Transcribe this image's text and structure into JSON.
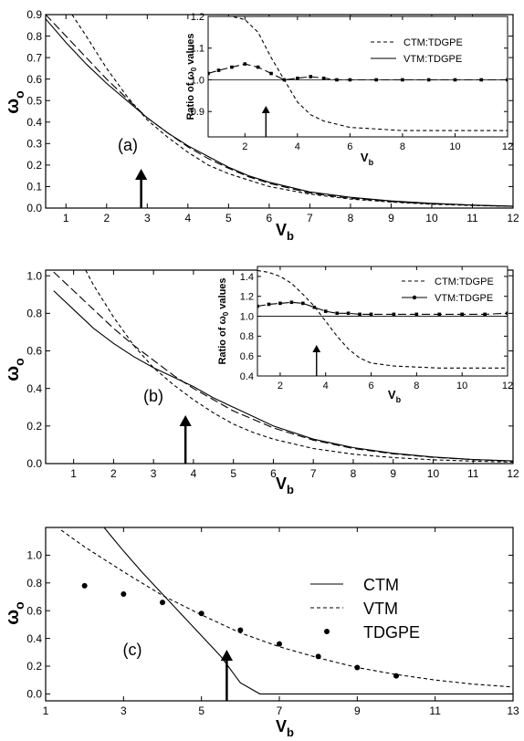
{
  "panels": [
    {
      "id": "a",
      "label": "(a)",
      "xlabel": "V",
      "xlabel_sub": "b",
      "ylabel": "ω",
      "ylabel_sub": "o",
      "xlim": [
        0.5,
        12
      ],
      "ylim": [
        0,
        0.9
      ],
      "xticks": [
        1,
        2,
        3,
        4,
        5,
        6,
        7,
        8,
        9,
        10,
        11,
        12
      ],
      "xtick_labels": [
        "1",
        "2",
        "3",
        "4",
        "5",
        "6",
        "7",
        "8",
        "9",
        "10",
        "11",
        "12"
      ],
      "yticks": [
        0,
        0.1,
        0.2,
        0.3,
        0.4,
        0.5,
        0.6,
        0.7,
        0.8,
        0.9
      ],
      "ytick_labels": [
        "0.0",
        "0.1",
        "0.2",
        "0.3",
        "0.4",
        "0.5",
        "0.6",
        "0.7",
        "0.8",
        "0.9"
      ],
      "arrow_x": 2.85,
      "series": [
        {
          "style": "solid",
          "x": [
            0.5,
            1,
            1.5,
            2,
            2.5,
            3,
            3.5,
            4,
            4.5,
            5,
            5.5,
            6,
            7,
            8,
            9,
            10,
            11,
            12
          ],
          "y": [
            0.88,
            0.77,
            0.67,
            0.58,
            0.5,
            0.42,
            0.35,
            0.29,
            0.24,
            0.19,
            0.15,
            0.12,
            0.075,
            0.05,
            0.033,
            0.022,
            0.014,
            0.009
          ]
        },
        {
          "style": "dashed",
          "x": [
            0.5,
            1,
            1.5,
            2,
            2.5,
            3,
            3.5,
            4,
            4.5,
            5,
            5.5,
            6,
            7,
            8,
            9,
            10,
            11,
            12
          ],
          "y": [
            0.9,
            0.8,
            0.7,
            0.6,
            0.51,
            0.42,
            0.35,
            0.285,
            0.23,
            0.185,
            0.145,
            0.115,
            0.07,
            0.045,
            0.03,
            0.02,
            0.013,
            0.008
          ]
        },
        {
          "style": "shortdash",
          "x": [
            1.15,
            1.5,
            2,
            2.5,
            3,
            3.5,
            4,
            4.5,
            5,
            5.5,
            6,
            7,
            8,
            9,
            10,
            11,
            12
          ],
          "y": [
            0.9,
            0.8,
            0.65,
            0.52,
            0.41,
            0.33,
            0.26,
            0.2,
            0.16,
            0.13,
            0.1,
            0.065,
            0.042,
            0.028,
            0.018,
            0.012,
            0.008
          ]
        }
      ],
      "inset": {
        "ylabel": "Ratio of ω",
        "ylabel_sub": "0",
        "ylabel_tail": " values",
        "xlabel": "V",
        "xlabel_sub": "b",
        "xlim": [
          0.6,
          12
        ],
        "ylim": [
          0.82,
          1.2
        ],
        "xticks": [
          2,
          4,
          6,
          8,
          10,
          12
        ],
        "xtick_labels": [
          "2",
          "4",
          "6",
          "8",
          "10",
          "12"
        ],
        "yticks": [
          0.9,
          1.0,
          1.1,
          1.2
        ],
        "ytick_labels": [
          "0.9",
          "1.0",
          "1.1",
          "1.2"
        ],
        "ref_y": 1.0,
        "arrow_x": 2.8,
        "legend": [
          {
            "style": "shortdash",
            "label": "CTM:TDGPE"
          },
          {
            "style": "solid",
            "label": "VTM:TDGPE"
          }
        ],
        "series": [
          {
            "style": "shortdash",
            "x": [
              0.6,
              1,
              1.5,
              2,
              2.5,
              3,
              3.5,
              4,
              4.5,
              5,
              5.5,
              6,
              7,
              8,
              9,
              10,
              11,
              12
            ],
            "y": [
              1.2,
              1.2,
              1.2,
              1.19,
              1.15,
              1.07,
              1.0,
              0.93,
              0.89,
              0.87,
              0.86,
              0.85,
              0.845,
              0.84,
              0.84,
              0.84,
              0.84,
              0.84
            ]
          },
          {
            "style": "dashed",
            "markers": true,
            "x": [
              0.6,
              1,
              1.5,
              2,
              2.5,
              3,
              3.5,
              4,
              4.5,
              5,
              5.5,
              6,
              7,
              8,
              9,
              10,
              11,
              12
            ],
            "y": [
              1.02,
              1.03,
              1.04,
              1.05,
              1.04,
              1.02,
              1.0,
              1.005,
              1.01,
              1.005,
              1.0,
              1.0,
              1.0,
              1.0,
              1.0,
              1.0,
              1.0,
              1.0
            ]
          }
        ]
      }
    },
    {
      "id": "b",
      "label": "(b)",
      "xlabel": "V",
      "xlabel_sub": "b",
      "ylabel": "ω",
      "ylabel_sub": "o",
      "xlim": [
        0.3,
        12
      ],
      "ylim": [
        0,
        1.03
      ],
      "xticks": [
        1,
        2,
        3,
        4,
        5,
        6,
        7,
        8,
        9,
        10,
        11,
        12
      ],
      "xtick_labels": [
        "1",
        "2",
        "3",
        "4",
        "5",
        "6",
        "7",
        "8",
        "9",
        "10",
        "11",
        "12"
      ],
      "yticks": [
        0,
        0.2,
        0.4,
        0.6,
        0.8,
        1.0
      ],
      "ytick_labels": [
        "0.0",
        "0.2",
        "0.4",
        "0.6",
        "0.8",
        "1.0"
      ],
      "arrow_x": 3.8,
      "series": [
        {
          "style": "solid",
          "x": [
            0.5,
            1,
            1.5,
            2,
            2.5,
            3,
            3.5,
            4,
            4.5,
            5,
            5.5,
            6,
            7,
            8,
            9,
            10,
            11,
            12
          ],
          "y": [
            0.92,
            0.82,
            0.72,
            0.64,
            0.57,
            0.51,
            0.46,
            0.41,
            0.35,
            0.3,
            0.25,
            0.2,
            0.13,
            0.085,
            0.055,
            0.035,
            0.022,
            0.014
          ]
        },
        {
          "style": "dashed",
          "x": [
            0.5,
            1,
            1.5,
            2,
            2.5,
            3,
            3.5,
            4,
            4.5,
            5,
            5.5,
            6,
            7,
            8,
            9,
            10,
            11,
            12
          ],
          "y": [
            1.02,
            0.92,
            0.82,
            0.72,
            0.63,
            0.55,
            0.47,
            0.4,
            0.34,
            0.28,
            0.235,
            0.19,
            0.125,
            0.08,
            0.052,
            0.033,
            0.021,
            0.013
          ]
        },
        {
          "style": "shortdash",
          "x": [
            1.3,
            1.5,
            2,
            2.5,
            3,
            3.5,
            4,
            4.5,
            5,
            5.5,
            6,
            7,
            8,
            9,
            10,
            11,
            12
          ],
          "y": [
            1.03,
            0.95,
            0.78,
            0.63,
            0.51,
            0.42,
            0.34,
            0.27,
            0.21,
            0.165,
            0.13,
            0.08,
            0.05,
            0.032,
            0.02,
            0.013,
            0.008
          ]
        }
      ],
      "inset": {
        "ylabel": "Ratio of ω",
        "ylabel_sub": "0",
        "ylabel_tail": " values",
        "xlabel": "V",
        "xlabel_sub": "b",
        "xlim": [
          1,
          12
        ],
        "ylim": [
          0.4,
          1.5
        ],
        "xticks": [
          2,
          4,
          6,
          8,
          10,
          12
        ],
        "xtick_labels": [
          "2",
          "4",
          "6",
          "8",
          "10",
          "12"
        ],
        "yticks": [
          0.4,
          0.6,
          0.8,
          1.0,
          1.2,
          1.4
        ],
        "ytick_labels": [
          "0.4",
          "0.6",
          "0.8",
          "1.0",
          "1.2",
          "1.4"
        ],
        "ref_y": 1.0,
        "arrow_x": 3.6,
        "legend": [
          {
            "style": "shortdash",
            "label": "CTM:TDGPE"
          },
          {
            "style": "solid",
            "markers": true,
            "label": "VTM:TDGPE"
          }
        ],
        "series": [
          {
            "style": "shortdash",
            "x": [
              1,
              1.5,
              2,
              2.5,
              3,
              3.5,
              4,
              4.5,
              5,
              5.5,
              6,
              7,
              8,
              9,
              10,
              11,
              12
            ],
            "y": [
              1.46,
              1.44,
              1.4,
              1.33,
              1.22,
              1.1,
              0.95,
              0.8,
              0.67,
              0.58,
              0.53,
              0.5,
              0.49,
              0.48,
              0.48,
              0.48,
              0.48
            ]
          },
          {
            "style": "dashed",
            "markers": true,
            "x": [
              1,
              1.5,
              2,
              2.5,
              3,
              3.5,
              4,
              4.5,
              5,
              5.5,
              6,
              7,
              8,
              9,
              10,
              11,
              12
            ],
            "y": [
              1.1,
              1.12,
              1.13,
              1.14,
              1.13,
              1.09,
              1.05,
              1.03,
              1.03,
              1.02,
              1.02,
              1.02,
              1.02,
              1.02,
              1.02,
              1.02,
              1.03
            ]
          }
        ]
      }
    },
    {
      "id": "c",
      "label": "(c)",
      "xlabel": "V",
      "xlabel_sub": "b",
      "ylabel": "ω",
      "ylabel_sub": "o",
      "xlim": [
        1,
        13
      ],
      "ylim": [
        -0.05,
        1.2
      ],
      "xticks": [
        1,
        3,
        5,
        7,
        9,
        11,
        13
      ],
      "xtick_labels": [
        "1",
        "3",
        "5",
        "7",
        "9",
        "11",
        "13"
      ],
      "yticks": [
        0,
        0.2,
        0.4,
        0.6,
        0.8,
        1.0
      ],
      "ytick_labels": [
        "0.0",
        "0.2",
        "0.4",
        "0.6",
        "0.8",
        "1.0"
      ],
      "arrow_x": 5.65,
      "legend": [
        {
          "style": "solid",
          "label": "CTM"
        },
        {
          "style": "shortdash",
          "label": "VTM"
        },
        {
          "style": "dot",
          "label": "TDGPE"
        }
      ],
      "series": [
        {
          "style": "solid",
          "x": [
            2.5,
            3,
            3.5,
            4,
            4.5,
            5,
            5.5,
            6,
            6.5,
            7,
            8,
            9,
            10,
            11,
            12,
            13
          ],
          "y": [
            1.2,
            1.03,
            0.87,
            0.72,
            0.57,
            0.42,
            0.27,
            0.08,
            0.0,
            0.0,
            0.0,
            0.0,
            0.0,
            0.0,
            0.0,
            0.0
          ]
        },
        {
          "style": "shortdash",
          "x": [
            1.4,
            2,
            3,
            4,
            5,
            6,
            7,
            8,
            9,
            10,
            11,
            12,
            13
          ],
          "y": [
            1.18,
            1.06,
            0.88,
            0.71,
            0.57,
            0.44,
            0.34,
            0.26,
            0.19,
            0.14,
            0.1,
            0.07,
            0.05
          ]
        },
        {
          "style": "dot",
          "x": [
            2,
            3,
            4,
            5,
            6,
            7,
            8,
            9,
            10
          ],
          "y": [
            0.78,
            0.72,
            0.66,
            0.58,
            0.46,
            0.36,
            0.27,
            0.19,
            0.13
          ]
        }
      ]
    }
  ]
}
